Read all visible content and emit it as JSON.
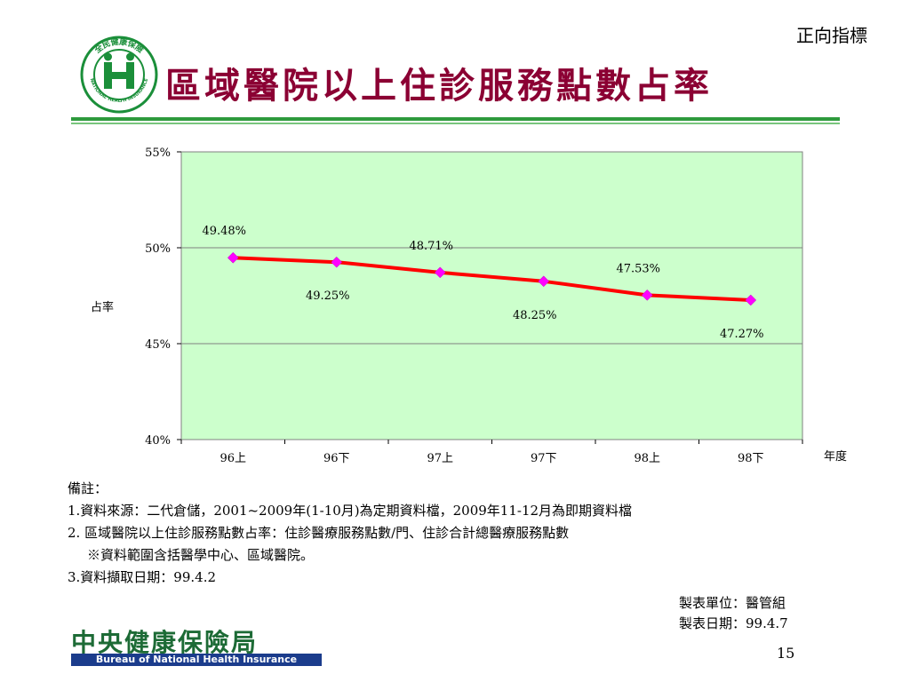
{
  "header": {
    "corner_tag": "正向指標",
    "title": "區域醫院以上住診服務點數占率",
    "logo": {
      "icon": "nhi-emblem-icon",
      "text_top": "全民健康保險",
      "text_bottom": "NATIONAL HEALTH INSURANCE",
      "brand_color": "#1b8f3a"
    }
  },
  "chart_data": {
    "type": "line",
    "categories": [
      "96上",
      "96下",
      "97上",
      "97下",
      "98上",
      "98下"
    ],
    "series": [
      {
        "values": [
          49.48,
          49.25,
          48.71,
          48.25,
          47.53,
          47.27
        ]
      }
    ],
    "data_labels": [
      "49.48%",
      "49.25%",
      "48.71%",
      "48.25%",
      "47.53%",
      "47.27%"
    ],
    "label_positions": [
      "above",
      "below",
      "above",
      "below",
      "above",
      "below"
    ],
    "ylim": [
      40,
      55
    ],
    "yticks": [
      40,
      45,
      50,
      55
    ],
    "ytick_labels": [
      "40%",
      "45%",
      "50%",
      "55%"
    ],
    "ylabel": "占率",
    "xlabel": "年度",
    "grid": true,
    "colors": {
      "plot_bg": "#ccffcc",
      "line": "#ff0000",
      "marker": "#ff00ff",
      "grid": "#808080"
    }
  },
  "notes": {
    "heading": "備註：",
    "line1": "1.資料來源：二代倉儲，2001~2009年(1-10月)為定期資料檔，2009年11-12月為即期資料檔",
    "line2": "2. 區域醫院以上住診服務點數占率：住診醫療服務點數/門、住診合計總醫療服務點數",
    "line3": "※資料範圍含括醫學中心、區域醫院。",
    "line4": "3.資料擷取日期：99.4.2"
  },
  "footer": {
    "maker_unit": "製表單位：醫管組",
    "maker_date": "製表日期：99.4.7",
    "page_number": "15",
    "bureau_cn": "中央健康保險局",
    "bureau_en": "Bureau of National Health Insurance"
  }
}
